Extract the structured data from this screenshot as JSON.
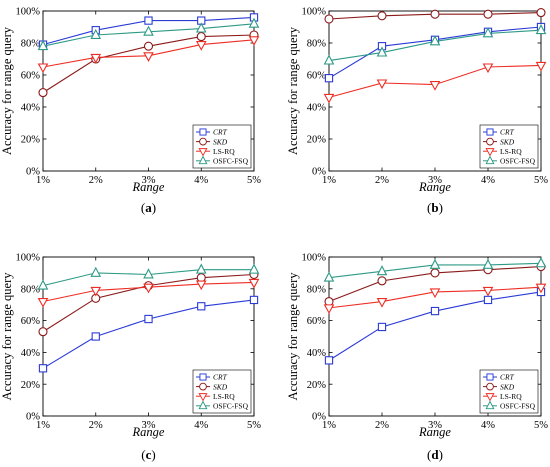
{
  "colors": {
    "CRT": "#2b3bd6",
    "SKD": "#8b1a1a",
    "LS-RQ": "#ee2d24",
    "OSFC-FSQ": "#2d9a86"
  },
  "markers": {
    "CRT": "square",
    "SKD": "circle",
    "LS-RQ": "triangle-down",
    "OSFC-FSQ": "triangle-up"
  },
  "chart_data": [
    {
      "type": "line",
      "panel_label": "a",
      "x": [
        "1%",
        "2%",
        "3%",
        "4%",
        "5%"
      ],
      "xlabel": "Range",
      "ylabel": "Accuracy for range query",
      "ylim": [
        0,
        100
      ],
      "yticks": [
        "0%",
        "20%",
        "40%",
        "60%",
        "80%",
        "100%"
      ],
      "legend": "bottom-right",
      "series": [
        {
          "name": "CRT",
          "values": [
            79,
            88,
            94,
            94,
            96
          ]
        },
        {
          "name": "SKD",
          "values": [
            49,
            70,
            78,
            84,
            85
          ]
        },
        {
          "name": "LS-RQ",
          "values": [
            65,
            71,
            72,
            79,
            82
          ]
        },
        {
          "name": "OSFC-FSQ",
          "values": [
            78,
            85,
            87,
            89,
            92
          ]
        }
      ]
    },
    {
      "type": "line",
      "panel_label": "b",
      "x": [
        "1%",
        "2%",
        "3%",
        "4%",
        "5%"
      ],
      "xlabel": "Range",
      "ylabel": "Accuracy for range query",
      "ylim": [
        0,
        100
      ],
      "yticks": [
        "0%",
        "20%",
        "40%",
        "60%",
        "80%",
        "100%"
      ],
      "legend": "bottom-right",
      "series": [
        {
          "name": "CRT",
          "values": [
            58,
            78,
            82,
            87,
            90
          ]
        },
        {
          "name": "SKD",
          "values": [
            95,
            97,
            98,
            98,
            99
          ]
        },
        {
          "name": "LS-RQ",
          "values": [
            46,
            55,
            54,
            65,
            66
          ]
        },
        {
          "name": "OSFC-FSQ",
          "values": [
            69,
            74,
            81,
            86,
            88
          ]
        }
      ]
    },
    {
      "type": "line",
      "panel_label": "c",
      "x": [
        "1%",
        "2%",
        "3%",
        "4%",
        "5%"
      ],
      "xlabel": "Range",
      "ylabel": "Accuracy for range query",
      "ylim": [
        0,
        100
      ],
      "yticks": [
        "0%",
        "20%",
        "40%",
        "60%",
        "80%",
        "100%"
      ],
      "legend": "bottom-right",
      "series": [
        {
          "name": "CRT",
          "values": [
            30,
            50,
            61,
            69,
            73
          ]
        },
        {
          "name": "SKD",
          "values": [
            53,
            74,
            82,
            87,
            89
          ]
        },
        {
          "name": "LS-RQ",
          "values": [
            72,
            79,
            81,
            83,
            84
          ]
        },
        {
          "name": "OSFC-FSQ",
          "values": [
            82,
            90,
            89,
            92,
            92
          ]
        }
      ]
    },
    {
      "type": "line",
      "panel_label": "d",
      "x": [
        "1%",
        "2%",
        "3%",
        "4%",
        "5%"
      ],
      "xlabel": "Range",
      "ylabel": "Accuracy for range query",
      "ylim": [
        0,
        100
      ],
      "yticks": [
        "0%",
        "20%",
        "40%",
        "60%",
        "80%",
        "100%"
      ],
      "legend": "bottom-right",
      "series": [
        {
          "name": "CRT",
          "values": [
            35,
            56,
            66,
            73,
            78
          ]
        },
        {
          "name": "SKD",
          "values": [
            72,
            85,
            90,
            92,
            94
          ]
        },
        {
          "name": "LS-RQ",
          "values": [
            68,
            72,
            78,
            79,
            81
          ]
        },
        {
          "name": "OSFC-FSQ",
          "values": [
            87,
            91,
            95,
            95,
            96
          ]
        }
      ]
    }
  ]
}
